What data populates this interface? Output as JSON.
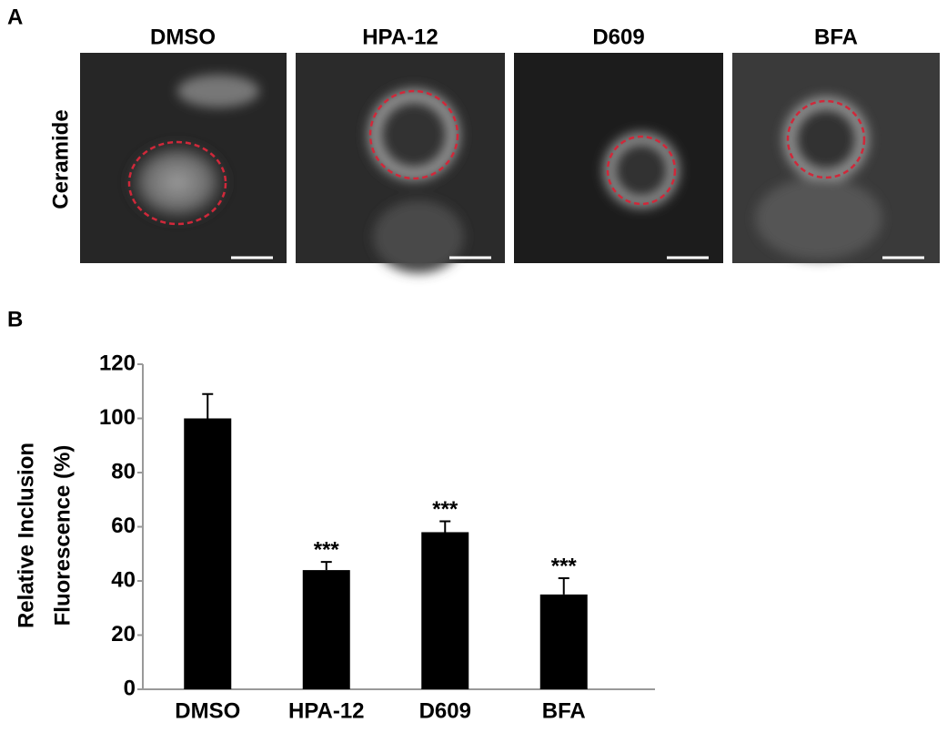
{
  "panel_a": {
    "label": "A",
    "row_label": "Ceramide",
    "images": [
      "DMSO",
      "HPA-12",
      "D609",
      "BFA"
    ]
  },
  "chart_data": {
    "type": "bar",
    "panel_label": "B",
    "y_label": [
      "Relative Inclusion",
      "Fluorescence (%)"
    ],
    "categories": [
      "DMSO",
      "HPA-12",
      "D609",
      "BFA"
    ],
    "values": [
      100,
      44,
      58,
      35
    ],
    "errors": [
      9,
      3,
      4,
      6
    ],
    "significance": [
      null,
      "***",
      "***",
      "***"
    ],
    "color": "#000000",
    "ylim": [
      0,
      120
    ],
    "yticks": [
      0,
      20,
      40,
      60,
      80,
      100,
      120
    ],
    "grid": false
  }
}
